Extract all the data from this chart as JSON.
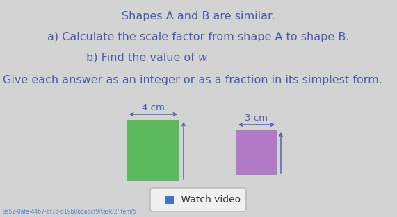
{
  "title_line1": "Shapes A and B are similar.",
  "line2": "a) Calculate the scale factor from shape A to shape B.",
  "line3_prefix": "b) Find the value of ",
  "line3_w": "w",
  "line3_suffix": ".",
  "line4": "Give each answer as an integer or as a fraction in its simplest form.",
  "text_color": "#4a5aa8",
  "bg_color": "#d3d3d3",
  "shape_a_color": "#5cb85c",
  "shape_b_color": "#b07ac4",
  "label_a": "4 cm",
  "label_b": "3 cm",
  "watch_video_text": " Watch video",
  "watch_video_icon_color": "#4472c4",
  "url_text": "9e52-0afe-4467-bf7d-d19b8bdabcf9/task/2/item/5",
  "url_color": "#5588cc",
  "title_fontsize": 11.5,
  "body_fontsize": 11.5,
  "dim_fontsize": 9.5
}
